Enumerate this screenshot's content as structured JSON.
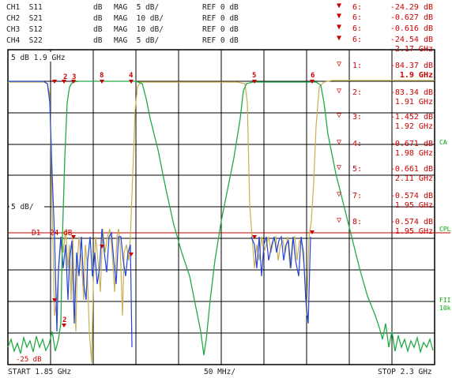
{
  "channels": [
    {
      "ch": "CH1  S11",
      "meas": "dB",
      "scale": "MAG  5 dB/",
      "ref": "REF 0 dB"
    },
    {
      "ch": "CH2  S21",
      "meas": "dB",
      "scale": "MAG  10 dB/",
      "ref": "REF 0 dB"
    },
    {
      "ch": "CH3  S12",
      "meas": "dB",
      "scale": "MAG  10 dB/",
      "ref": "REF 0 dB"
    },
    {
      "ch": "CH4  S22",
      "meas": "dB",
      "scale": "MAG  5 dB/",
      "ref": "REF 0 dB"
    }
  ],
  "top_markers": [
    {
      "name": "6:",
      "value": "-24.29 dB"
    },
    {
      "name": "6:",
      "value": "-0.627 dB"
    },
    {
      "name": "6:",
      "value": "-0.616 dB"
    },
    {
      "name": "6:",
      "value": "-24.54 dB",
      "freq": "2.17 GHz"
    }
  ],
  "markers": [
    {
      "name": "1:",
      "value": "-84.37 dB",
      "freq": "1.9 GHz"
    },
    {
      "name": "2:",
      "value": "-83.34 dB",
      "freq": "1.91 GHz"
    },
    {
      "name": "3:",
      "value": "-1.452 dB",
      "freq": "1.92 GHz"
    },
    {
      "name": "4:",
      "value": "-0.671 dB",
      "freq": "1.98 GHz"
    },
    {
      "name": "5:",
      "value": "-0.661 dB",
      "freq": "2.11 GHz"
    },
    {
      "name": "7:",
      "value": "-0.574 dB",
      "freq": "1.95 GHz"
    },
    {
      "name": "8:",
      "value": "-0.574 dB",
      "freq": "1.95 GHz"
    }
  ],
  "upper_scale": "5 dB 1.9 GHz",
  "lower_scale": "5 dB/",
  "display_line": "D1  -24 dB",
  "bottom_ref": "-25 dB",
  "footer": {
    "start": "START  1.85 GHz",
    "span": "50 MHz/",
    "stop": "STOP 2.3 GHz"
  },
  "side_labels": [
    "CA",
    "CPL",
    "FII",
    "10k"
  ],
  "colors": {
    "s11": "#2244dd",
    "s21": "#22aa44",
    "s12": "#c8b050",
    "marker": "#cc0000",
    "grid": "#000000"
  }
}
